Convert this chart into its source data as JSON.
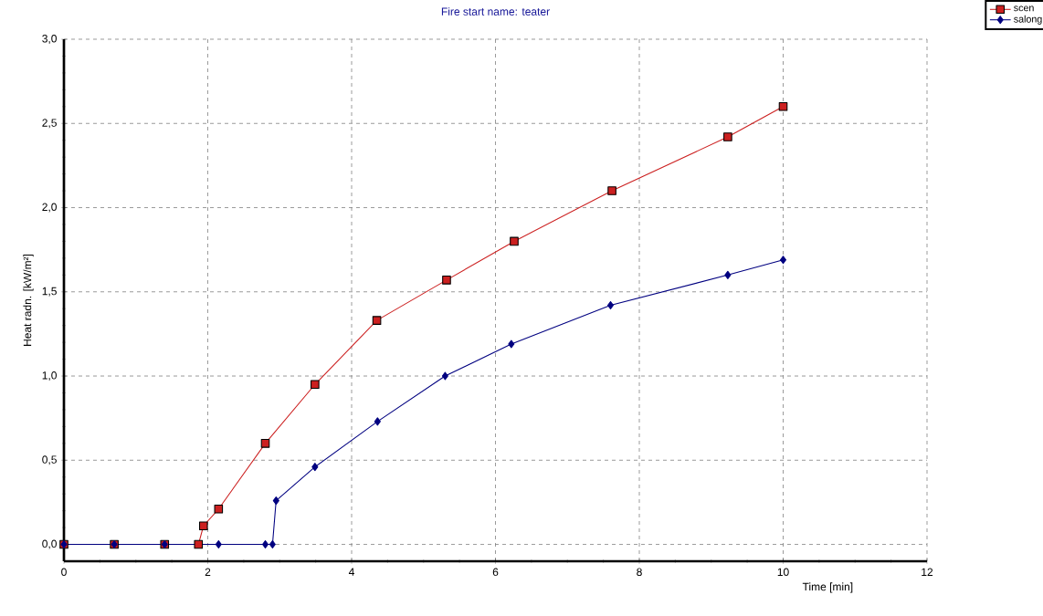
{
  "chart_data": {
    "type": "line",
    "subtitle": "Fire start name:  teater",
    "xlabel": "Time [min]",
    "ylabel": "Heat radn. [kW/m²]",
    "xlim": [
      0,
      12
    ],
    "ylim": [
      -0.1,
      3.0
    ],
    "xticks": [
      0,
      2,
      4,
      6,
      8,
      10,
      12
    ],
    "yticks": [
      {
        "value": 0,
        "label": "0,0"
      },
      {
        "value": 0.5,
        "label": "0,5"
      },
      {
        "value": 1.0,
        "label": "1,0"
      },
      {
        "value": 1.5,
        "label": "1,5"
      },
      {
        "value": 2.0,
        "label": "2,0"
      },
      {
        "value": 2.5,
        "label": "2,5"
      },
      {
        "value": 3.0,
        "label": "3,0"
      }
    ],
    "grid": true,
    "legend": "top right",
    "line_style": "solid",
    "series": [
      {
        "name": "scen",
        "color": "#cc2020",
        "marker": "square",
        "x": [
          0,
          0.7,
          1.4,
          1.87,
          1.94,
          2.15,
          2.8,
          3.49,
          4.35,
          5.32,
          6.26,
          7.62,
          9.23,
          10
        ],
        "values": [
          0,
          0,
          0,
          0,
          0.11,
          0.21,
          0.6,
          0.95,
          1.33,
          1.57,
          1.8,
          2.1,
          2.42,
          2.6
        ]
      },
      {
        "name": "salong",
        "color": "#000080",
        "marker": "diamond",
        "x": [
          0,
          0.7,
          1.4,
          2.15,
          2.8,
          2.9,
          2.95,
          3.49,
          4.36,
          5.3,
          6.22,
          7.6,
          9.23,
          10
        ],
        "values": [
          0,
          0,
          0,
          0,
          0,
          0,
          0.26,
          0.46,
          0.73,
          1.0,
          1.19,
          1.42,
          1.6,
          1.69
        ]
      }
    ]
  }
}
